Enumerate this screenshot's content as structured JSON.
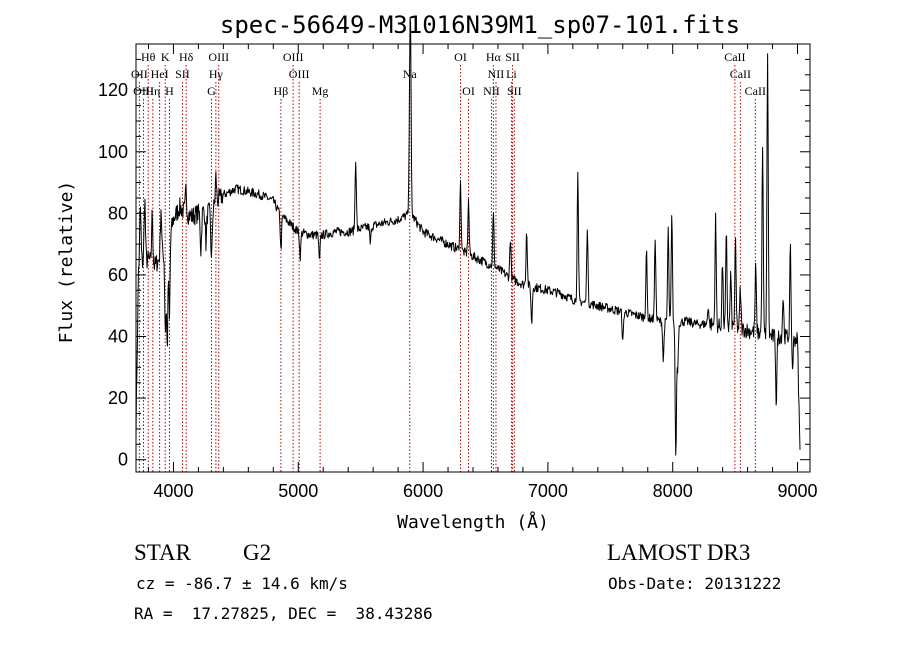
{
  "chart_data": {
    "type": "line",
    "title": "spec-56649-M31016N39M1_sp07-101.fits",
    "xlabel": "Wavelength (Å)",
    "ylabel": "Flux (relative)",
    "xlim": [
      3700,
      9100
    ],
    "ylim": [
      -4,
      135
    ],
    "xticks": [
      4000,
      5000,
      6000,
      7000,
      8000,
      9000
    ],
    "xtick_labels": [
      "4000",
      "5000",
      "6000",
      "7000",
      "8000",
      "9000"
    ],
    "yticks": [
      0,
      20,
      40,
      60,
      80,
      100,
      120
    ],
    "ytick_labels": [
      "0",
      "20",
      "40",
      "60",
      "80",
      "100",
      "120"
    ],
    "continuum": {
      "x": [
        3700,
        3720,
        3750,
        3800,
        3850,
        3900,
        3950,
        4000,
        4050,
        4100,
        4150,
        4200,
        4250,
        4300,
        4350,
        4400,
        4500,
        4600,
        4700,
        4800,
        4850,
        4900,
        4950,
        5000,
        5100,
        5200,
        5300,
        5400,
        5500,
        5600,
        5700,
        5800,
        5900,
        5950,
        6000,
        6100,
        6200,
        6300,
        6400,
        6500,
        6600,
        6700,
        6800,
        6900,
        7000,
        7100,
        7200,
        7300,
        7400,
        7500,
        7600,
        7700,
        7800,
        7900,
        8000,
        8100,
        8200,
        8300,
        8400,
        8500,
        8600,
        8700,
        8800,
        8900,
        9000,
        9020
      ],
      "y": [
        10,
        62,
        64,
        65,
        63,
        66,
        68,
        78,
        82,
        80,
        79,
        80,
        81,
        80,
        84,
        86,
        88,
        87,
        86,
        84,
        80,
        78,
        76,
        74,
        73,
        73,
        74,
        74,
        75,
        76,
        77,
        78,
        80,
        77,
        74,
        72,
        70,
        68,
        66,
        64,
        62,
        59,
        57,
        56,
        55,
        54,
        52,
        51,
        50,
        49,
        48,
        47,
        46,
        45,
        44,
        45,
        44,
        44,
        43,
        43,
        42,
        41,
        40,
        40,
        39,
        2
      ]
    },
    "features": [
      {
        "x": 3735,
        "y": 82
      },
      {
        "x": 3770,
        "y": 85
      },
      {
        "x": 3830,
        "y": 80
      },
      {
        "x": 3900,
        "y": 82
      },
      {
        "x": 3935,
        "y": 42
      },
      {
        "x": 3950,
        "y": 36
      },
      {
        "x": 3968,
        "y": 45
      },
      {
        "x": 4101,
        "y": 88
      },
      {
        "x": 4220,
        "y": 68
      },
      {
        "x": 4261,
        "y": 70
      },
      {
        "x": 4305,
        "y": 64
      },
      {
        "x": 4340,
        "y": 92
      },
      {
        "x": 4861,
        "y": 68
      },
      {
        "x": 5015,
        "y": 66
      },
      {
        "x": 5170,
        "y": 64
      },
      {
        "x": 5460,
        "y": 98
      },
      {
        "x": 5577,
        "y": 70
      },
      {
        "x": 5893,
        "y": 116
      },
      {
        "x": 5900,
        "y": 127
      },
      {
        "x": 6300,
        "y": 90
      },
      {
        "x": 6364,
        "y": 84
      },
      {
        "x": 6563,
        "y": 80
      },
      {
        "x": 6700,
        "y": 72
      },
      {
        "x": 6830,
        "y": 75
      },
      {
        "x": 6870,
        "y": 44
      },
      {
        "x": 7240,
        "y": 92
      },
      {
        "x": 7316,
        "y": 76
      },
      {
        "x": 7600,
        "y": 38
      },
      {
        "x": 7790,
        "y": 68
      },
      {
        "x": 7860,
        "y": 72
      },
      {
        "x": 7925,
        "y": 32
      },
      {
        "x": 7964,
        "y": 75
      },
      {
        "x": 7993,
        "y": 79
      },
      {
        "x": 8025,
        "y": 0
      },
      {
        "x": 8040,
        "y": 30
      },
      {
        "x": 8284,
        "y": 50
      },
      {
        "x": 8344,
        "y": 78
      },
      {
        "x": 8399,
        "y": 64
      },
      {
        "x": 8430,
        "y": 73
      },
      {
        "x": 8465,
        "y": 60
      },
      {
        "x": 8503,
        "y": 70
      },
      {
        "x": 8542,
        "y": 55
      },
      {
        "x": 8665,
        "y": 62
      },
      {
        "x": 8720,
        "y": 102
      },
      {
        "x": 8760,
        "y": 133
      },
      {
        "x": 8830,
        "y": 18
      },
      {
        "x": 8885,
        "y": 53
      },
      {
        "x": 8943,
        "y": 68
      },
      {
        "x": 8960,
        "y": 30
      }
    ],
    "lines": [
      {
        "label": "Hθ",
        "x": 3798,
        "row": 0
      },
      {
        "label": "K",
        "x": 3934,
        "row": 0
      },
      {
        "label": "Hδ",
        "x": 4102,
        "row": 0
      },
      {
        "label": "OIII",
        "x": 4363,
        "row": 0
      },
      {
        "label": "OIII",
        "x": 4959,
        "row": 0
      },
      {
        "label": "OI",
        "x": 6300,
        "row": 0
      },
      {
        "label": "Hα",
        "x": 6563,
        "row": 0
      },
      {
        "label": "SII",
        "x": 6717,
        "row": 0
      },
      {
        "label": "CaII",
        "x": 8498,
        "row": 0
      },
      {
        "label": "OII",
        "x": 3727,
        "row": 1
      },
      {
        "label": "HeI",
        "x": 3889,
        "row": 1
      },
      {
        "label": "SII",
        "x": 4072,
        "row": 1
      },
      {
        "label": "Hγ",
        "x": 4340,
        "row": 1
      },
      {
        "label": "OIII",
        "x": 5007,
        "row": 1
      },
      {
        "label": "Na",
        "x": 5893,
        "row": 1
      },
      {
        "label": "NII",
        "x": 6584,
        "row": 1
      },
      {
        "label": "Li",
        "x": 6708,
        "row": 1
      },
      {
        "label": "CaII",
        "x": 8542,
        "row": 1
      },
      {
        "label": "OIII",
        "x": 3760,
        "row": 2
      },
      {
        "label": "Hη",
        "x": 3835,
        "row": 2
      },
      {
        "label": "H",
        "x": 3968,
        "row": 2
      },
      {
        "label": "G",
        "x": 4305,
        "row": 2
      },
      {
        "label": "Hβ",
        "x": 4861,
        "row": 2
      },
      {
        "label": "Mg",
        "x": 5175,
        "row": 2
      },
      {
        "label": "OI",
        "x": 6364,
        "row": 2
      },
      {
        "label": "NII",
        "x": 6548,
        "row": 2
      },
      {
        "label": "SII",
        "x": 6731,
        "row": 2
      },
      {
        "label": "CaII",
        "x": 8662,
        "row": 2
      }
    ]
  },
  "info": {
    "object_class": "STAR",
    "subclass": "G2",
    "survey": "LAMOST DR3",
    "redshift": "cz = -86.7 ± 14.6 km/s",
    "obs_date": "Obs-Date: 20131222",
    "coords": "RA =  17.27825, DEC =  38.43286"
  }
}
